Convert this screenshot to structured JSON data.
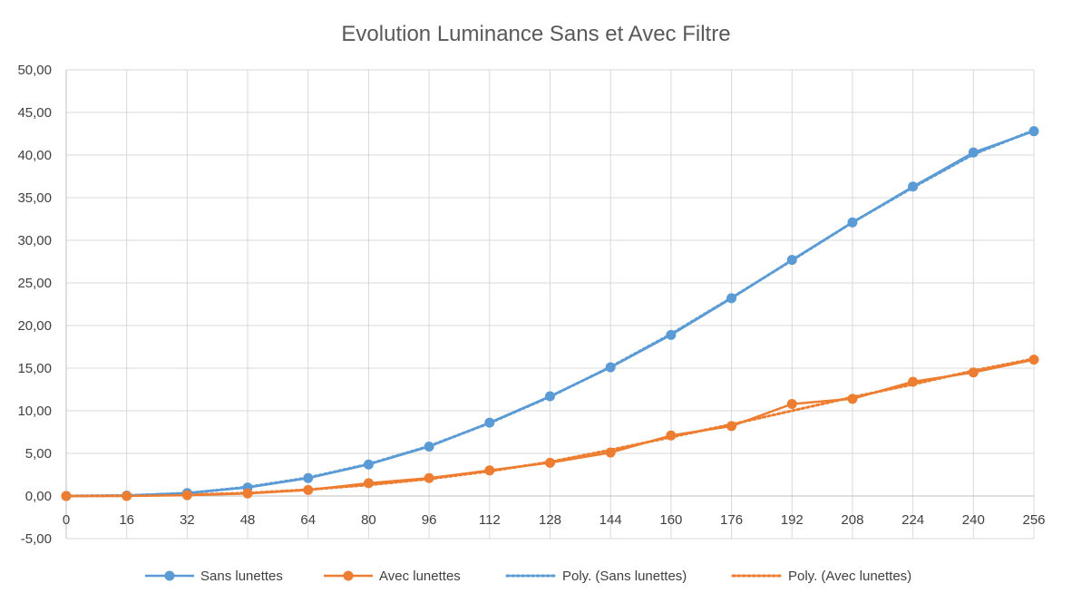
{
  "chart_data": {
    "type": "line",
    "title": "Evolution Luminance Sans et Avec Filtre",
    "xlabel": "",
    "ylabel": "",
    "categories": [
      "0",
      "16",
      "32",
      "48",
      "64",
      "80",
      "96",
      "112",
      "128",
      "144",
      "160",
      "176",
      "192",
      "208",
      "224",
      "240",
      "256"
    ],
    "ylim": [
      -5,
      50
    ],
    "y_ticks": [
      "-5,00",
      "0,00",
      "5,00",
      "10,00",
      "15,00",
      "20,00",
      "25,00",
      "30,00",
      "35,00",
      "40,00",
      "45,00",
      "50,00"
    ],
    "y_tick_values": [
      -5,
      0,
      5,
      10,
      15,
      20,
      25,
      30,
      35,
      40,
      45,
      50
    ],
    "grid": true,
    "legend_position": "bottom",
    "series": [
      {
        "name": "Sans lunettes",
        "color": "#5b9bd5",
        "style": "solid-markers",
        "values": [
          0.0,
          0.05,
          0.35,
          1.0,
          2.1,
          3.7,
          5.8,
          8.6,
          11.7,
          15.1,
          18.9,
          23.2,
          27.7,
          32.1,
          36.3,
          40.3,
          42.8
        ]
      },
      {
        "name": "Avec lunettes",
        "color": "#ed7d31",
        "style": "solid-markers",
        "values": [
          0.0,
          0.0,
          0.1,
          0.3,
          0.7,
          1.5,
          2.1,
          3.0,
          3.9,
          5.1,
          7.1,
          8.2,
          10.8,
          11.4,
          13.4,
          14.5,
          16.0
        ]
      }
    ],
    "trendlines": [
      {
        "name": "Poly. (Sans lunettes)",
        "color": "#5b9bd5",
        "style": "dotted",
        "values": [
          0.0,
          0.05,
          0.33,
          1.05,
          2.15,
          3.75,
          5.85,
          8.55,
          11.65,
          15.15,
          19.0,
          23.25,
          27.65,
          32.1,
          36.2,
          40.1,
          42.9
        ]
      },
      {
        "name": "Poly. (Avec lunettes)",
        "color": "#ed7d31",
        "style": "dotted",
        "values": [
          0.0,
          0.05,
          0.15,
          0.35,
          0.75,
          1.3,
          2.0,
          2.9,
          4.0,
          5.4,
          6.9,
          8.4,
          10.0,
          11.6,
          13.1,
          14.7,
          16.1
        ]
      }
    ]
  }
}
